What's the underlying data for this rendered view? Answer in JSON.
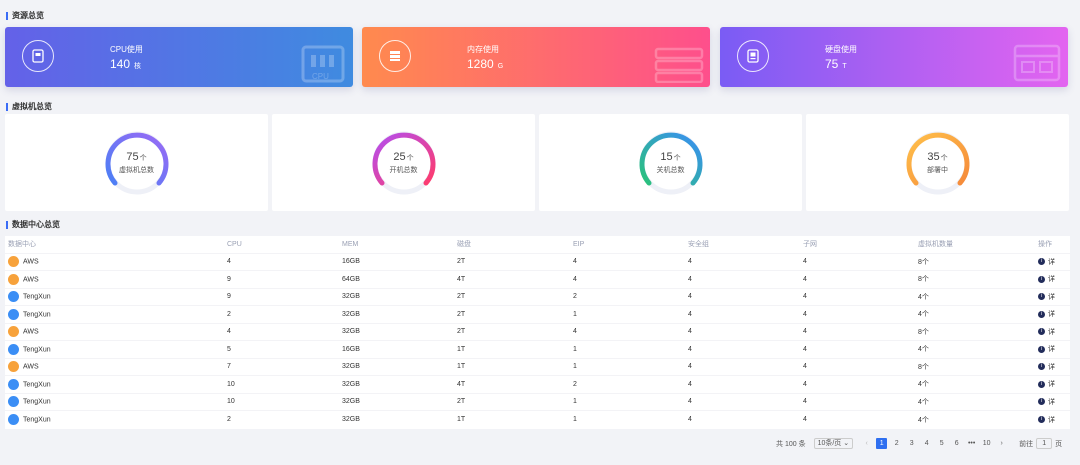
{
  "sections": {
    "resource": "资源总览",
    "vm": "虚拟机总览",
    "datacenter": "数据中心总览"
  },
  "resource_cards": [
    {
      "label": "CPU使用",
      "value": "140",
      "unit": "核",
      "bg_text": "CPU",
      "gradient": [
        "#6461e8",
        "#3f8be0"
      ]
    },
    {
      "label": "内存使用",
      "value": "1280",
      "unit": "G",
      "bg_text": "",
      "gradient": [
        "#ff8a4e",
        "#fe4f8c"
      ]
    },
    {
      "label": "硬盘使用",
      "value": "75",
      "unit": "T",
      "bg_text": "",
      "gradient": [
        "#7a5cf4",
        "#e364f0"
      ]
    }
  ],
  "vm_panels": [
    {
      "value": "75",
      "unit": "个",
      "label": "虚拟机总数",
      "colors": [
        "#9b6af5",
        "#4b7ff5"
      ]
    },
    {
      "value": "25",
      "unit": "个",
      "label": "开机总数",
      "colors": [
        "#b34ff0",
        "#ff3b6b"
      ]
    },
    {
      "value": "15",
      "unit": "个",
      "label": "关机总数",
      "colors": [
        "#2ac27a",
        "#3a8ef5"
      ]
    },
    {
      "value": "35",
      "unit": "个",
      "label": "部署中",
      "colors": [
        "#ffb03b",
        "#f58a3a"
      ]
    }
  ],
  "table": {
    "headers": [
      "数据中心",
      "CPU",
      "MEM",
      "磁盘",
      "EIP",
      "安全组",
      "子网",
      "虚拟机数量",
      "操作"
    ],
    "rows": [
      [
        "AWS",
        "4",
        "16GB",
        "2T",
        "4",
        "4",
        "4",
        "8个",
        "详"
      ],
      [
        "AWS",
        "9",
        "64GB",
        "4T",
        "4",
        "4",
        "4",
        "8个",
        "详"
      ],
      [
        "TengXun",
        "9",
        "32GB",
        "2T",
        "2",
        "4",
        "4",
        "4个",
        "详"
      ],
      [
        "TengXun",
        "2",
        "32GB",
        "2T",
        "1",
        "4",
        "4",
        "4个",
        "详"
      ],
      [
        "AWS",
        "4",
        "32GB",
        "2T",
        "4",
        "4",
        "4",
        "8个",
        "详"
      ],
      [
        "TengXun",
        "5",
        "16GB",
        "1T",
        "1",
        "4",
        "4",
        "4个",
        "详"
      ],
      [
        "AWS",
        "7",
        "32GB",
        "1T",
        "1",
        "4",
        "4",
        "8个",
        "详"
      ],
      [
        "TengXun",
        "10",
        "32GB",
        "4T",
        "2",
        "4",
        "4",
        "4个",
        "详"
      ],
      [
        "TengXun",
        "10",
        "32GB",
        "2T",
        "1",
        "4",
        "4",
        "4个",
        "详"
      ],
      [
        "TengXun",
        "2",
        "32GB",
        "1T",
        "1",
        "4",
        "4",
        "4个",
        "详"
      ]
    ]
  },
  "pagination": {
    "total": "共 100 条",
    "page_size": "10条/页",
    "pages": [
      "1",
      "2",
      "3",
      "4",
      "5",
      "6",
      "•••",
      "10"
    ],
    "current": "1",
    "goto_label": "前往",
    "goto_value": "1",
    "page_suffix": "页"
  }
}
